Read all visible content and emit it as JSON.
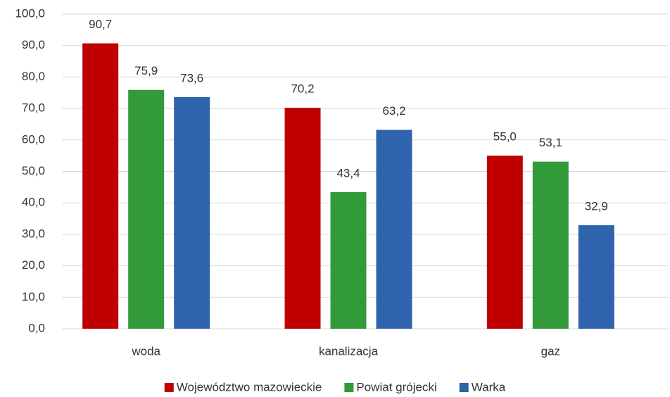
{
  "chart_data": {
    "type": "bar",
    "categories": [
      "woda",
      "kanalizacja",
      "gaz"
    ],
    "series": [
      {
        "name": "Województwo mazowieckie",
        "color": "#c00000",
        "values": [
          90.7,
          70.2,
          55.0
        ],
        "value_labels": [
          "90,7",
          "70,2",
          "55,0"
        ]
      },
      {
        "name": "Powiat grójecki",
        "color": "#339a3a",
        "values": [
          75.9,
          43.4,
          53.1
        ],
        "value_labels": [
          "75,9",
          "43,4",
          "53,1"
        ]
      },
      {
        "name": "Warka",
        "color": "#2f63ae",
        "values": [
          73.6,
          63.2,
          32.9
        ],
        "value_labels": [
          "73,6",
          "63,2",
          "32,9"
        ]
      }
    ],
    "ylim": [
      0,
      100
    ],
    "yticks": [
      {
        "value": 0,
        "label": "0,0"
      },
      {
        "value": 10,
        "label": "10,0"
      },
      {
        "value": 20,
        "label": "20,0"
      },
      {
        "value": 30,
        "label": "30,0"
      },
      {
        "value": 40,
        "label": "40,0"
      },
      {
        "value": 50,
        "label": "50,0"
      },
      {
        "value": 60,
        "label": "60,0"
      },
      {
        "value": 70,
        "label": "70,0"
      },
      {
        "value": 80,
        "label": "80,0"
      },
      {
        "value": 90,
        "label": "90,0"
      },
      {
        "value": 100,
        "label": "100,0"
      }
    ],
    "grid": true,
    "legend": "bottom"
  }
}
